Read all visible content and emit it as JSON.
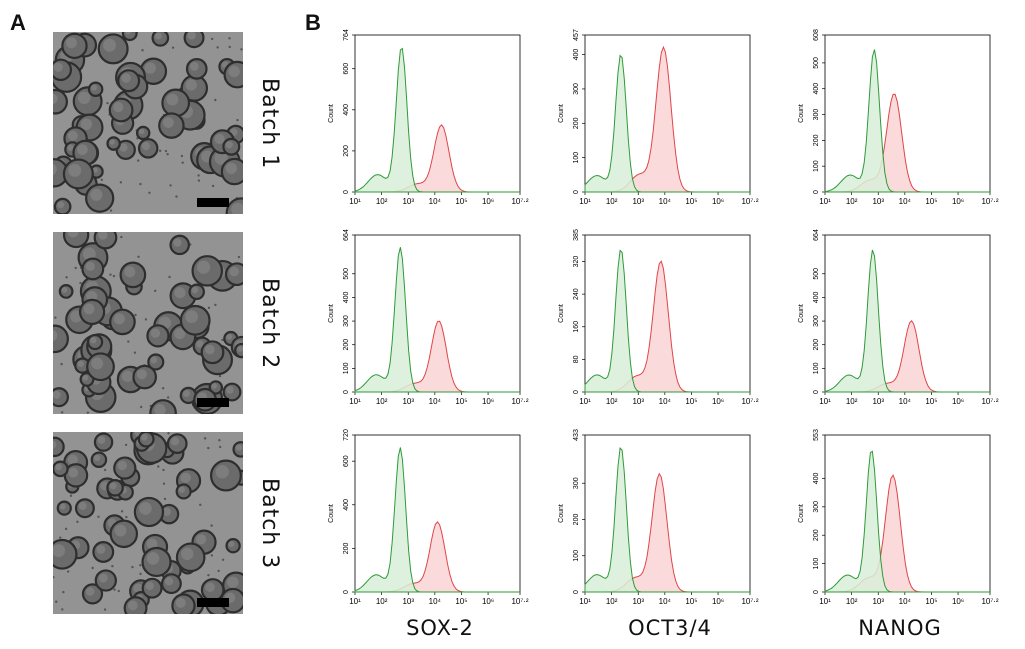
{
  "panels": {
    "a": "A",
    "b": "B"
  },
  "batches": [
    "Batch 1",
    "Batch 2",
    "Batch 3"
  ],
  "markers": [
    "SOX-2",
    "OCT3/4",
    "NANOG"
  ],
  "colors": {
    "control": "#2e9a3a",
    "control_fill": "#d8efd8",
    "stained": "#e0454a",
    "stained_fill": "#fadada"
  },
  "chart_data": {
    "type": "area",
    "description": "3x3 grid of flow-cytometry histograms; rows = batches, columns = markers; green = control, red = marker-stained",
    "ylabel": "Count",
    "xscale": "log",
    "x_ticks": [
      "10¹",
      "10²",
      "10³",
      "10⁴",
      "10⁵",
      "10⁶",
      "10⁷·²"
    ],
    "xlim_log10": [
      1,
      7.2
    ],
    "panels": [
      {
        "batch": "Batch 1",
        "marker": "SOX-2",
        "ymax_label": "764",
        "y_ticks": [
          "0",
          "200",
          "400",
          "600"
        ],
        "ylim": [
          0,
          764
        ],
        "control_peak": {
          "log10x": 2.75,
          "count": 705
        },
        "stained_peak": {
          "log10x": 4.25,
          "count": 325
        }
      },
      {
        "batch": "Batch 1",
        "marker": "OCT3/4",
        "ymax_label": "457",
        "y_ticks": [
          "0",
          "100",
          "200",
          "300",
          "400"
        ],
        "ylim": [
          0,
          457
        ],
        "control_peak": {
          "log10x": 2.35,
          "count": 400
        },
        "stained_peak": {
          "log10x": 3.95,
          "count": 420
        }
      },
      {
        "batch": "Batch 1",
        "marker": "NANOG",
        "ymax_label": "608",
        "y_ticks": [
          "0",
          "100",
          "200",
          "300",
          "400",
          "500"
        ],
        "ylim": [
          0,
          608
        ],
        "control_peak": {
          "log10x": 2.85,
          "count": 550
        },
        "stained_peak": {
          "log10x": 3.6,
          "count": 380
        }
      },
      {
        "batch": "Batch 2",
        "marker": "SOX-2",
        "ymax_label": "664",
        "y_ticks": [
          "0",
          "100",
          "200",
          "300",
          "400",
          "500"
        ],
        "ylim": [
          0,
          664
        ],
        "control_peak": {
          "log10x": 2.7,
          "count": 610
        },
        "stained_peak": {
          "log10x": 4.15,
          "count": 300
        }
      },
      {
        "batch": "Batch 2",
        "marker": "OCT3/4",
        "ymax_label": "385",
        "y_ticks": [
          "0",
          "80",
          "160",
          "240",
          "320"
        ],
        "ylim": [
          0,
          385
        ],
        "control_peak": {
          "log10x": 2.35,
          "count": 350
        },
        "stained_peak": {
          "log10x": 3.85,
          "count": 320
        }
      },
      {
        "batch": "Batch 2",
        "marker": "NANOG",
        "ymax_label": "664",
        "y_ticks": [
          "0",
          "100",
          "200",
          "300",
          "400",
          "500"
        ],
        "ylim": [
          0,
          664
        ],
        "control_peak": {
          "log10x": 2.8,
          "count": 600
        },
        "stained_peak": {
          "log10x": 4.25,
          "count": 300
        }
      },
      {
        "batch": "Batch 3",
        "marker": "SOX-2",
        "ymax_label": "720",
        "y_ticks": [
          "0",
          "200",
          "400",
          "600"
        ],
        "ylim": [
          0,
          720
        ],
        "control_peak": {
          "log10x": 2.7,
          "count": 660
        },
        "stained_peak": {
          "log10x": 4.1,
          "count": 320
        }
      },
      {
        "batch": "Batch 3",
        "marker": "OCT3/4",
        "ymax_label": "433",
        "y_ticks": [
          "0",
          "100",
          "200",
          "300"
        ],
        "ylim": [
          0,
          433
        ],
        "control_peak": {
          "log10x": 2.35,
          "count": 400
        },
        "stained_peak": {
          "log10x": 3.8,
          "count": 325
        }
      },
      {
        "batch": "Batch 3",
        "marker": "NANOG",
        "ymax_label": "553",
        "y_ticks": [
          "0",
          "100",
          "200",
          "300",
          "400"
        ],
        "ylim": [
          0,
          553
        ],
        "control_peak": {
          "log10x": 2.75,
          "count": 500
        },
        "stained_peak": {
          "log10x": 3.55,
          "count": 410
        }
      }
    ]
  }
}
